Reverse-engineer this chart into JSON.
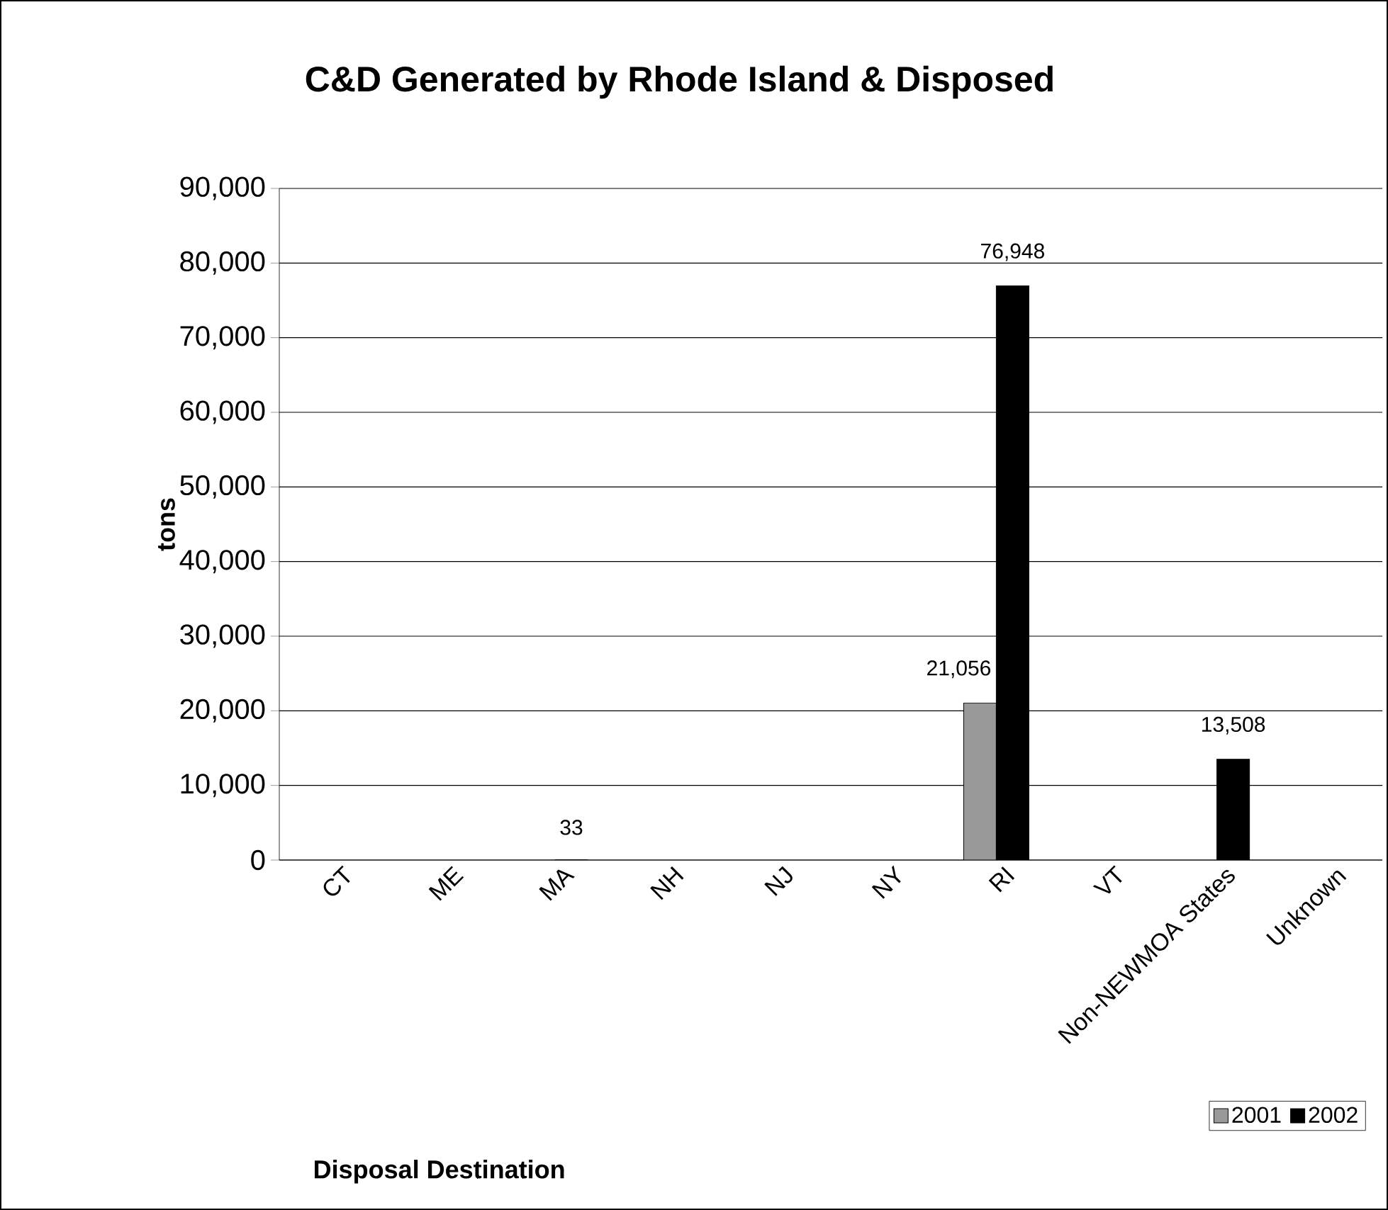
{
  "chart_data": {
    "type": "bar",
    "title": "C&D Generated by Rhode Island & Disposed",
    "xlabel": "Disposal Destination",
    "ylabel": "tons",
    "categories": [
      "CT",
      "ME",
      "MA",
      "NH",
      "NJ",
      "NY",
      "RI",
      "VT",
      "Non-NEWMOA States",
      "Unknown"
    ],
    "series": [
      {
        "name": "2001",
        "color": "#999999",
        "values": [
          null,
          null,
          null,
          null,
          null,
          null,
          21056,
          null,
          null,
          null
        ],
        "value_labels": [
          null,
          null,
          null,
          null,
          null,
          null,
          "21,056",
          null,
          null,
          null
        ]
      },
      {
        "name": "2002",
        "color": "#000000",
        "values": [
          null,
          null,
          33,
          null,
          null,
          null,
          76948,
          null,
          13508,
          null
        ],
        "value_labels": [
          null,
          null,
          "33",
          null,
          null,
          null,
          "76,948",
          null,
          "13,508",
          null
        ]
      }
    ],
    "ylim": [
      0,
      90000
    ],
    "yticks": [
      {
        "value": 0,
        "label": "0"
      },
      {
        "value": 10000,
        "label": "10,000"
      },
      {
        "value": 20000,
        "label": "20,000"
      },
      {
        "value": 30000,
        "label": "30,000"
      },
      {
        "value": 40000,
        "label": "40,000"
      },
      {
        "value": 50000,
        "label": "50,000"
      },
      {
        "value": 60000,
        "label": "60,000"
      },
      {
        "value": 70000,
        "label": "70,000"
      },
      {
        "value": 80000,
        "label": "80,000"
      },
      {
        "value": 90000,
        "label": "90,000"
      }
    ],
    "grid": "y",
    "legend": "bottom right"
  }
}
